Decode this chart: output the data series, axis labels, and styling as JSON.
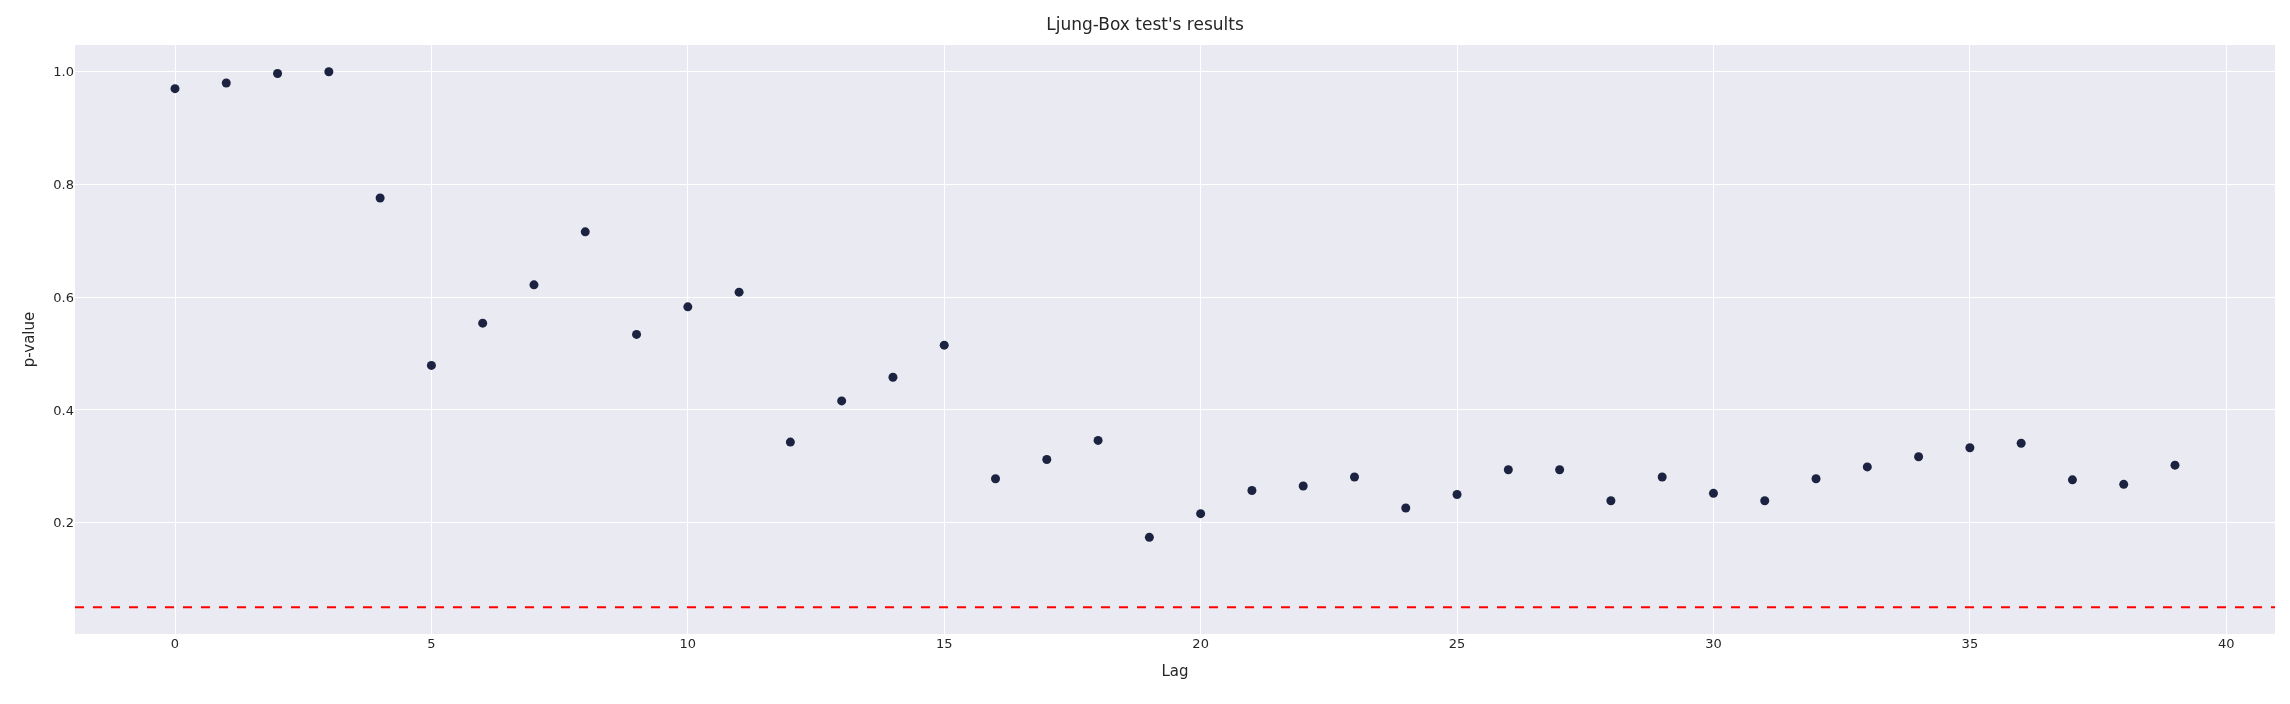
{
  "chart_data": {
    "type": "scatter",
    "title": "Ljung-Box test's results",
    "xlabel": "Lag",
    "ylabel": "p-value",
    "x": [
      0,
      1,
      2,
      3,
      4,
      5,
      6,
      7,
      8,
      9,
      10,
      11,
      12,
      13,
      14,
      15,
      16,
      17,
      18,
      19,
      20,
      21,
      22,
      23,
      24,
      25,
      26,
      27,
      28,
      29,
      30,
      31,
      32,
      33,
      34,
      35,
      36,
      37,
      38,
      39
    ],
    "series": [
      {
        "color": "#1c2340",
        "values": [
          0.97,
          0.98,
          0.997,
          1.0,
          0.776,
          0.479,
          0.554,
          0.622,
          0.716,
          0.534,
          0.583,
          0.609,
          0.343,
          0.416,
          0.458,
          0.515,
          0.278,
          0.312,
          0.346,
          0.174,
          0.216,
          0.257,
          0.265,
          0.281,
          0.226,
          0.25,
          0.294,
          0.294,
          0.239,
          0.281,
          0.252,
          0.239,
          0.278,
          0.299,
          0.317,
          0.333,
          0.341,
          0.276,
          0.268,
          0.302
        ]
      }
    ],
    "xlim": [
      -1.95,
      40.95
    ],
    "ylim": [
      0.0025,
      1.0475
    ],
    "xticks": [
      0,
      5,
      10,
      15,
      20,
      25,
      30,
      35,
      40
    ],
    "yticks": [
      0.2,
      0.4,
      0.6,
      0.8,
      {
        "value": 1.0,
        "label": "1.0"
      }
    ],
    "ref_lines": [
      {
        "axis": "y",
        "value": 0.05,
        "color": "#ff0000",
        "line_style": "dashed"
      }
    ],
    "grid": true,
    "marker": "circle"
  }
}
